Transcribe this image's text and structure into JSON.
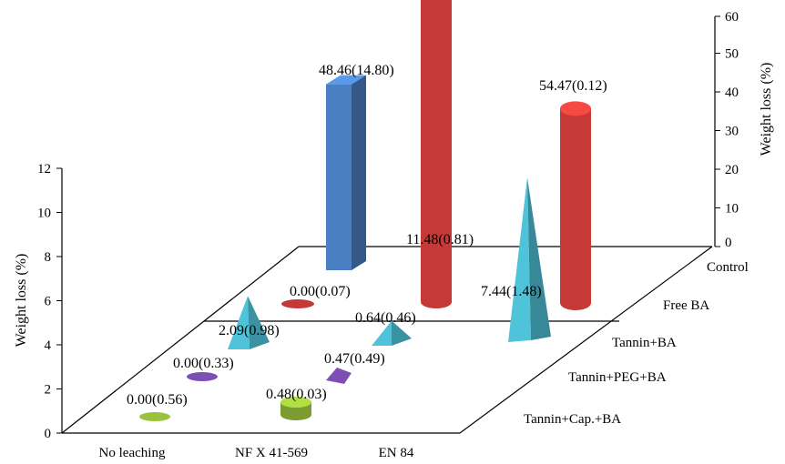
{
  "chart_data": {
    "type": "bar-3d",
    "categories": [
      "No leaching",
      "NF X 41-569",
      "EN 84"
    ],
    "series": [
      {
        "name": "Tannin+Cap.+BA",
        "values": [
          0.0,
          0.48,
          0.47
        ],
        "sd": [
          0.56,
          0.03,
          0.49
        ],
        "color": "#9bc23c",
        "labels": [
          "0.00(0.56)",
          "0.48(0.03)",
          "0.47(0.49)"
        ]
      },
      {
        "name": "Tannin+PEG+BA",
        "values": [
          0.0,
          0.64,
          7.44
        ],
        "sd": [
          0.33,
          0.46,
          1.48
        ],
        "color": "#7d4fb5",
        "labels": [
          "0.00(0.33)",
          "0.64(0.46)",
          "7.44(1.48)"
        ]
      },
      {
        "name": "Tannin+BA",
        "values": [
          2.09,
          11.48,
          54.47
        ],
        "sd": [
          0.98,
          0.81,
          0.12
        ],
        "color": "#4fc3d9",
        "labels": [
          "2.09(0.98)",
          "11.48(0.81)",
          "54.47(0.12)"
        ]
      },
      {
        "name": "Free BA",
        "values": [
          0.0,
          48.46,
          54.47
        ],
        "sd": [
          0.07,
          14.8,
          0.12
        ],
        "color": "#c53a36",
        "labels": [
          "0.00(0.07)",
          "48.46(14.80)",
          "54.47(0.12)"
        ]
      },
      {
        "name": "Control",
        "values": [
          null,
          null,
          null
        ],
        "color": "#4a7fc4",
        "labels": [
          "",
          "",
          ""
        ]
      }
    ],
    "left_axis": {
      "label": "Weight loss (%)",
      "range": [
        0,
        12
      ],
      "ticks": [
        "0",
        "2",
        "4",
        "6",
        "8",
        "10",
        "12"
      ]
    },
    "right_axis": {
      "label": "Weight loss (%)",
      "range": [
        0,
        60
      ],
      "ticks": [
        "0",
        "10",
        "20",
        "30",
        "40",
        "50",
        "60"
      ]
    },
    "depth_labels": [
      "Tannin+Cap.+BA",
      "Tannin+PEG+BA",
      "Tannin+BA",
      "Free BA",
      "Control"
    ]
  }
}
